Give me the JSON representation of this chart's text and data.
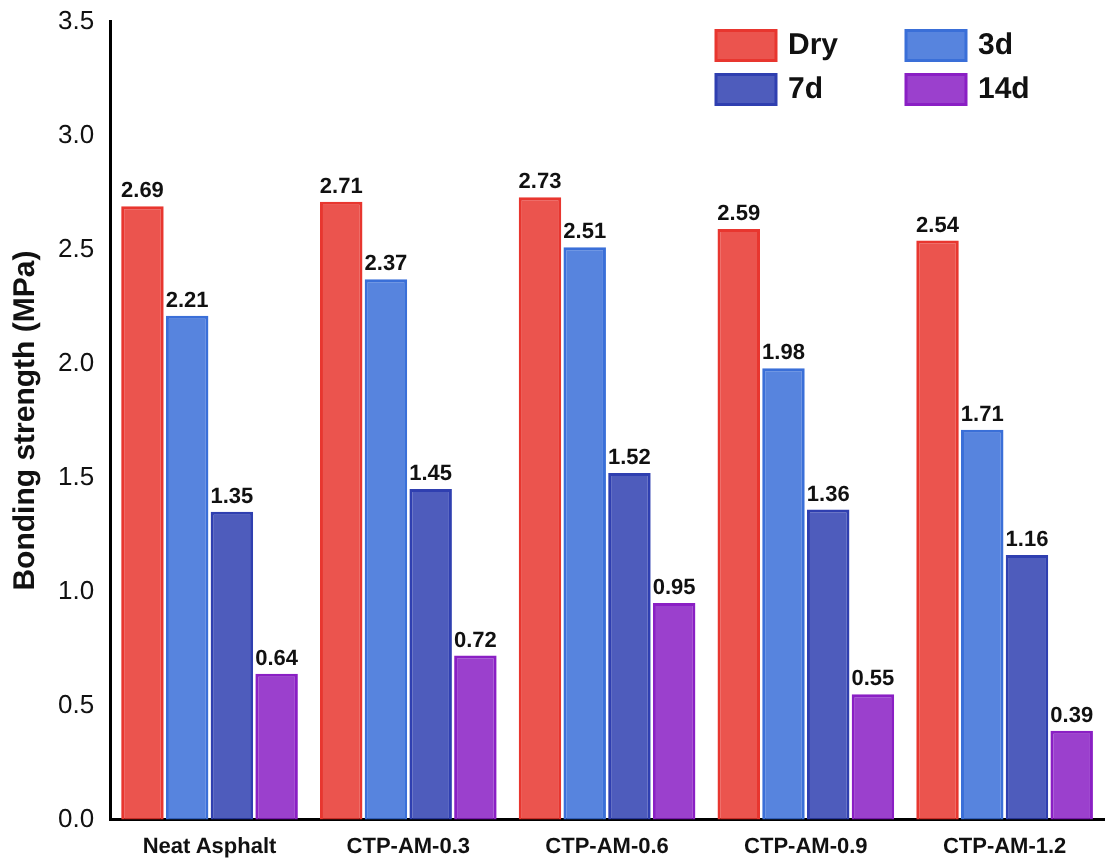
{
  "chart_data": {
    "type": "bar",
    "ylabel": "Bonding strength (MPa)",
    "categories": [
      "Neat Asphalt",
      "CTP-AM-0.3",
      "CTP-AM-0.6",
      "CTP-AM-0.9",
      "CTP-AM-1.2"
    ],
    "series": [
      {
        "name": "Dry",
        "color": "#e8362f",
        "values": [
          2.69,
          2.71,
          2.73,
          2.59,
          2.54
        ]
      },
      {
        "name": "3d",
        "color": "#3a6fd8",
        "values": [
          2.21,
          2.37,
          2.51,
          1.98,
          1.71
        ]
      },
      {
        "name": "7d",
        "color": "#2f3fb0",
        "values": [
          1.35,
          1.45,
          1.52,
          1.36,
          1.16
        ]
      },
      {
        "name": "14d",
        "color": "#8a1fc4",
        "values": [
          0.64,
          0.72,
          0.95,
          0.55,
          0.39
        ]
      }
    ],
    "ylim": [
      0,
      3.5
    ],
    "yticks": [
      {
        "value": 0,
        "label": "0.0"
      },
      0.5,
      {
        "value": 1,
        "label": "1.0"
      },
      1.5,
      {
        "value": 2,
        "label": "2.0"
      },
      2.5,
      {
        "value": 3,
        "label": "3.0"
      },
      3.5
    ],
    "grid": false,
    "legend": "top right",
    "data_labels": true
  }
}
